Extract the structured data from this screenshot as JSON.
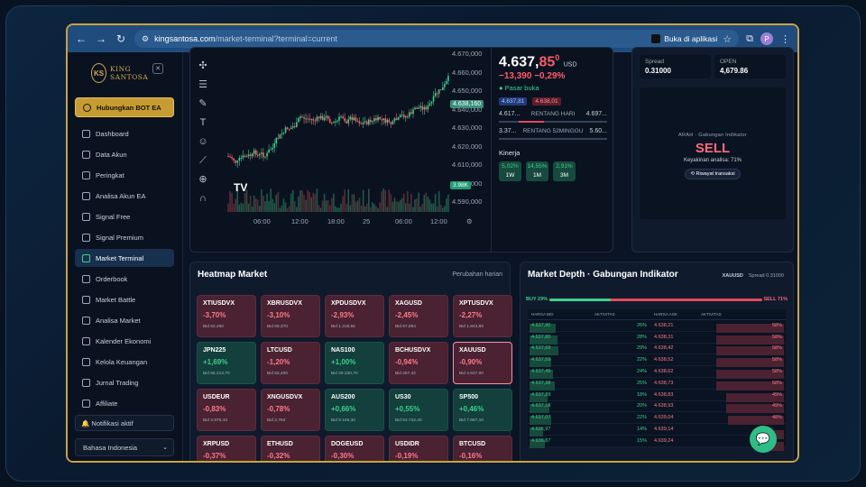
{
  "browser": {
    "url_host": "kingsantosa.com",
    "url_path": "/market-terminal?terminal=current",
    "open_in_app": "Buka di aplikasi",
    "profile_initial": "P"
  },
  "sidebar": {
    "logo_text": "KING SANTOSA",
    "logo_mark": "KS",
    "bot_button": "Hubungkan BOT EA",
    "items": [
      {
        "label": "Dashboard",
        "icon": "grid-icon"
      },
      {
        "label": "Data Akun",
        "icon": "user-icon"
      },
      {
        "label": "Peringkat",
        "icon": "trophy-icon"
      },
      {
        "label": "Analisa Akun EA",
        "icon": "chart-icon"
      },
      {
        "label": "Signal Free",
        "icon": "signal-icon"
      },
      {
        "label": "Signal Premium",
        "icon": "signal-icon"
      },
      {
        "label": "Market Terminal",
        "icon": "terminal-icon"
      },
      {
        "label": "Orderbook",
        "icon": "book-icon"
      },
      {
        "label": "Market Battle",
        "icon": "battle-icon"
      },
      {
        "label": "Analisa Market",
        "icon": "analysis-icon"
      },
      {
        "label": "Kalender Ekonomi",
        "icon": "calendar-icon"
      },
      {
        "label": "Kelola Keuangan",
        "icon": "wallet-icon"
      },
      {
        "label": "Jurnal Trading",
        "icon": "journal-icon"
      },
      {
        "label": "Affiliate",
        "icon": "affiliate-icon"
      }
    ],
    "active_index": 6,
    "notification": "🔔 Notifikasi aktif",
    "language": "Bahasa Indonesia"
  },
  "chart": {
    "y_ticks": [
      "4.670,000",
      "4.660,000",
      "4.650,000",
      "4.640,000",
      "4.630,000",
      "4.620,000",
      "4.610,000",
      "4.600,000",
      "4.590,000"
    ],
    "x_ticks": [
      "06:00",
      "12:00",
      "18:00",
      "25",
      "06:00",
      "12:00"
    ],
    "last_price_tag": "4.638,160",
    "volume_tag": "3.98K"
  },
  "quote": {
    "price_main": "4.637,",
    "price_red": "85",
    "price_sup": "0",
    "currency": "USD",
    "change": "−13,390  −0,29%",
    "status": "● Pasar buka",
    "bid_tag": "4.637,81",
    "ask_tag": "4.638,01",
    "day_low": "4.617...",
    "day_high": "4.697...",
    "day_label": "RENTANG HARI",
    "week_low": "3.37...",
    "week_high": "5.60...",
    "week_label": "RENTANG 52MINGGU",
    "performance_title": "Kinerja",
    "performance": [
      {
        "pct": "5,02%",
        "label": "1W"
      },
      {
        "pct": "14,55%",
        "label": "1M"
      },
      {
        "pct": "2,91%",
        "label": "3M"
      }
    ]
  },
  "right": {
    "spread_label": "Spread",
    "spread_value": "0.31000",
    "open_label": "OPEN",
    "open_value": "4,679.86",
    "signal_title": "ARAH · Gabungan Indikator",
    "signal_value": "SELL",
    "confidence": "Keyakinan analisa: 71%",
    "history": "⟲ Riwayat transaksi"
  },
  "heatmap": {
    "title": "Heatmap Market",
    "subtitle": "Perubahan harian",
    "tiles": [
      {
        "name": "XTIUSDVX",
        "chg": "-3,70%",
        "bid": "Bid 62,460",
        "dir": "dn"
      },
      {
        "name": "XBRUSDVX",
        "chg": "-3,10%",
        "bid": "Bid 69,370",
        "dir": "dn"
      },
      {
        "name": "XPDUSDVX",
        "chg": "-2,93%",
        "bid": "Bid 1.318,55",
        "dir": "dn"
      },
      {
        "name": "XAGUSD",
        "chg": "-2,45%",
        "bid": "Bid 67,984",
        "dir": "dn"
      },
      {
        "name": "XPTUSDVX",
        "chg": "-2,27%",
        "bid": "Bid 1.843,89",
        "dir": "dn"
      },
      {
        "name": "JPN225",
        "chg": "+1,69%",
        "bid": "Bid 56.213,70",
        "dir": "up"
      },
      {
        "name": "LTCUSD",
        "chg": "-1,20%",
        "bid": "Bid 53,400",
        "dir": "dn"
      },
      {
        "name": "NAS100",
        "chg": "+1,00%",
        "bid": "Bid 29.330,70",
        "dir": "up"
      },
      {
        "name": "BCHUSDVX",
        "chg": "-0,94%",
        "bid": "Bid 267,42",
        "dir": "dn"
      },
      {
        "name": "XAUUSD",
        "chg": "-0,90%",
        "bid": "Bid 4.637,90",
        "dir": "dn",
        "sel": true
      },
      {
        "name": "USDEUR",
        "chg": "-0,83%",
        "bid": "Bid 3.976,43",
        "dir": "dn"
      },
      {
        "name": "XNGUSDVX",
        "chg": "-0,78%",
        "bid": "Bid 2,783",
        "dir": "dn"
      },
      {
        "name": "AUS200",
        "chg": "+0,66%",
        "bid": "Bid 9.169,30",
        "dir": "up"
      },
      {
        "name": "US30",
        "chg": "+0,55%",
        "bid": "Bid 53.722,40",
        "dir": "up"
      },
      {
        "name": "SP500",
        "chg": "+0,46%",
        "bid": "Bid 7.687,10",
        "dir": "up"
      },
      {
        "name": "XRPUSD",
        "chg": "-0,37%",
        "bid": "Bid 1,469",
        "dir": "dn"
      },
      {
        "name": "ETHUSD",
        "chg": "-0,32%",
        "bid": "Bid 2.470,39",
        "dir": "dn"
      },
      {
        "name": "DOGEUSD",
        "chg": "-0,30%",
        "bid": "Bid 0,09948",
        "dir": "dn"
      },
      {
        "name": "USDIDR",
        "chg": "-0,19%",
        "bid": "Bid 17.696,39",
        "dir": "dn"
      },
      {
        "name": "BTCUSD",
        "chg": "-0,16%",
        "bid": "Bid 78.880,55",
        "dir": "dn"
      }
    ]
  },
  "depth": {
    "title": "Market Depth · Gabungan Indikator",
    "symbol": "XAUUSD",
    "spread": "Spread 0.31000",
    "buy_label": "BUY 29%",
    "sell_label": "SELL 71%",
    "buy_fraction": 0.29,
    "headers": [
      "HARGA BID",
      "AKTIVITAS",
      "HARGA ASK",
      "AKTIVITAS"
    ],
    "rows": [
      {
        "bid": "4.637,90",
        "bid_pct": "26%",
        "ask": "4.638,21",
        "ask_pct": "58%",
        "bw": 0.26,
        "aw": 0.58
      },
      {
        "bid": "4.637,80",
        "bid_pct": "28%",
        "ask": "4.638,31",
        "ask_pct": "58%",
        "bw": 0.28,
        "aw": 0.58
      },
      {
        "bid": "4.637,69",
        "bid_pct": "29%",
        "ask": "4.638,42",
        "ask_pct": "58%",
        "bw": 0.29,
        "aw": 0.58
      },
      {
        "bid": "4.637,59",
        "bid_pct": "22%",
        "ask": "4.638,52",
        "ask_pct": "58%",
        "bw": 0.22,
        "aw": 0.58
      },
      {
        "bid": "4.637,49",
        "bid_pct": "24%",
        "ask": "4.638,62",
        "ask_pct": "58%",
        "bw": 0.24,
        "aw": 0.58
      },
      {
        "bid": "4.637,38",
        "bid_pct": "25%",
        "ask": "4.638,73",
        "ask_pct": "58%",
        "bw": 0.25,
        "aw": 0.58
      },
      {
        "bid": "4.637,28",
        "bid_pct": "18%",
        "ask": "4.638,83",
        "ask_pct": "49%",
        "bw": 0.18,
        "aw": 0.49
      },
      {
        "bid": "4.637,18",
        "bid_pct": "20%",
        "ask": "4.638,93",
        "ask_pct": "49%",
        "bw": 0.2,
        "aw": 0.49
      },
      {
        "bid": "4.637,07",
        "bid_pct": "22%",
        "ask": "4.639,04",
        "ask_pct": "48%",
        "bw": 0.22,
        "aw": 0.48
      },
      {
        "bid": "4.636,97",
        "bid_pct": "14%",
        "ask": "4.639,14",
        "ask_pct": "",
        "bw": 0.14,
        "aw": 0.18
      },
      {
        "bid": "4.636,87",
        "bid_pct": "15%",
        "ask": "4.639,24",
        "ask_pct": "",
        "bw": 0.15,
        "aw": 0.18
      }
    ]
  }
}
